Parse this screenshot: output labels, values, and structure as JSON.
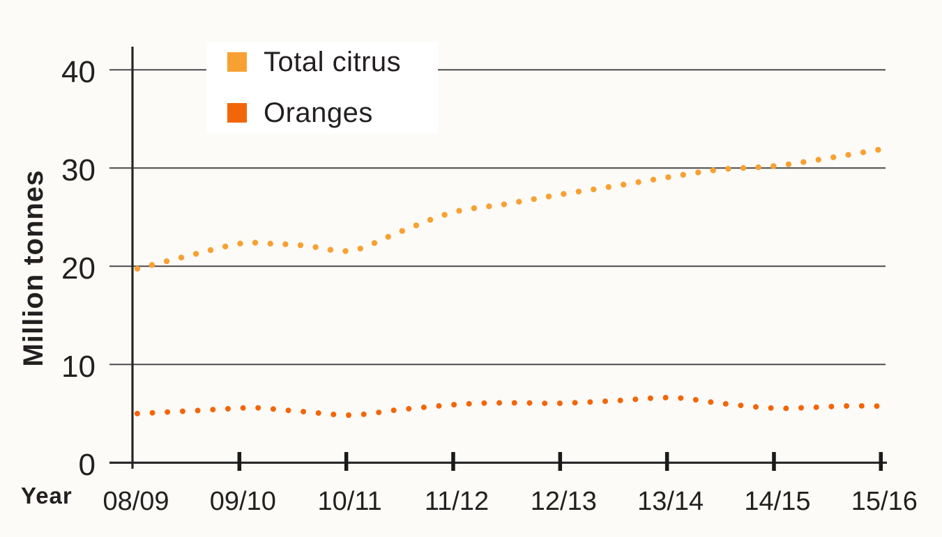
{
  "style": {
    "page_bg": "#FCFBF7",
    "legend_bg": "#FFFFFF",
    "text_color": "#231F20",
    "grid_color": "#4A4A4D",
    "axis_color": "#262626",
    "tick_color": "#1A1A1A"
  },
  "chart_data": {
    "type": "line",
    "line_style": "dotted",
    "title": "",
    "xlabel": "Year",
    "ylabel": "Million tonnes",
    "x_categories": [
      "08/09",
      "09/10",
      "10/11",
      "11/12",
      "12/13",
      "13/14",
      "14/15",
      "15/16"
    ],
    "y_ticks": [
      0,
      10,
      20,
      30,
      40
    ],
    "ylim": [
      0,
      42
    ],
    "grid": "horizontal",
    "legend_position": "top-left-inside",
    "dot_spacing_px": 21.7,
    "series": [
      {
        "name": "Total citrus",
        "color": "#F7A132",
        "dot_radius": 4.2,
        "values_by_year": [
          19.8,
          22.3,
          21.7,
          25.5,
          27.3,
          29.1,
          30.2,
          32.0
        ],
        "shape_points": [
          [
            0.045,
            19.75
          ],
          [
            0.5,
            21.0
          ],
          [
            1.0,
            22.3
          ],
          [
            1.3,
            22.3
          ],
          [
            1.62,
            22.1
          ],
          [
            2.05,
            21.6
          ],
          [
            2.5,
            23.5
          ],
          [
            3.0,
            25.5
          ],
          [
            3.5,
            26.35
          ],
          [
            4.0,
            27.3
          ],
          [
            4.5,
            28.15
          ],
          [
            5.0,
            29.05
          ],
          [
            5.5,
            29.85
          ],
          [
            6.0,
            30.2
          ],
          [
            6.5,
            31.0
          ],
          [
            7.05,
            32.0
          ]
        ]
      },
      {
        "name": "Oranges",
        "color": "#F2660A",
        "dot_radius": 4.0,
        "values_by_year": [
          5.0,
          5.6,
          4.9,
          5.9,
          6.1,
          6.6,
          5.6,
          5.8
        ],
        "shape_points": [
          [
            0.045,
            5.0
          ],
          [
            0.5,
            5.25
          ],
          [
            1.0,
            5.55
          ],
          [
            1.15,
            5.6
          ],
          [
            1.6,
            5.2
          ],
          [
            2.05,
            4.85
          ],
          [
            2.5,
            5.4
          ],
          [
            3.0,
            5.9
          ],
          [
            3.35,
            6.08
          ],
          [
            3.7,
            6.08
          ],
          [
            4.0,
            6.05
          ],
          [
            4.5,
            6.3
          ],
          [
            5.05,
            6.62
          ],
          [
            5.5,
            6.05
          ],
          [
            6.0,
            5.55
          ],
          [
            6.35,
            5.63
          ],
          [
            6.7,
            5.78
          ],
          [
            7.05,
            5.74
          ]
        ]
      }
    ]
  }
}
